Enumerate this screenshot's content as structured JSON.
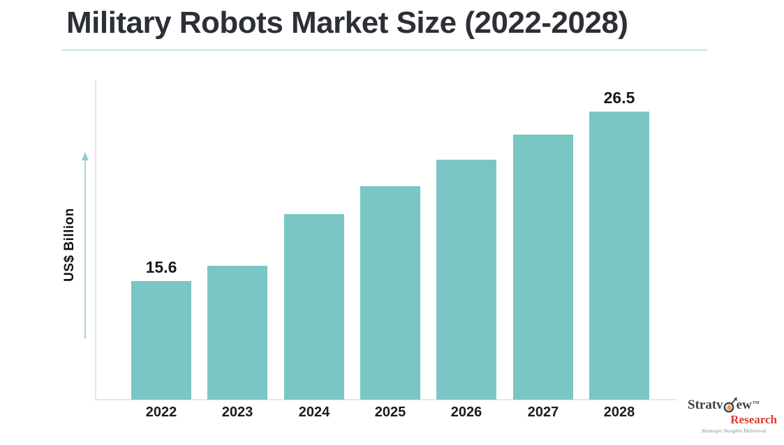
{
  "header": {
    "title": "Military Robots Market Size (2022-2028)"
  },
  "chart_data": {
    "type": "bar",
    "title": "Military Robots Market Size (2022-2028)",
    "categories": [
      "2022",
      "2023",
      "2024",
      "2025",
      "2026",
      "2027",
      "2028"
    ],
    "values": [
      15.6,
      16.6,
      19.9,
      21.7,
      23.4,
      25.0,
      26.5
    ],
    "shown_value_labels": [
      {
        "index": 0,
        "text": "15.6"
      },
      {
        "index": 6,
        "text": "26.5"
      }
    ],
    "xlabel": "",
    "ylabel": "US$ Billion",
    "ylim": [
      8,
      28.5
    ],
    "grid": false,
    "legend": false,
    "bar_color": "#79c6c4",
    "axis_color": "#d6ecef",
    "baseline_color": "#e7e9e9",
    "arrow_color": "#8fccd3",
    "divider_color": "#c2e2e8",
    "title_color": "#2c3036",
    "label_color": "#17191c"
  },
  "logo": {
    "brand_prefix": "Stratv",
    "brand_suffix": "ew",
    "trademark": "TM",
    "brand_secondary": "Research",
    "tagline": "Strategic Insights Delivered",
    "brand_color": "#3d4248",
    "secondary_color": "#e03a2f",
    "tagline_color": "#7a7f85",
    "icon_bar_color": "#ef8c2d"
  }
}
